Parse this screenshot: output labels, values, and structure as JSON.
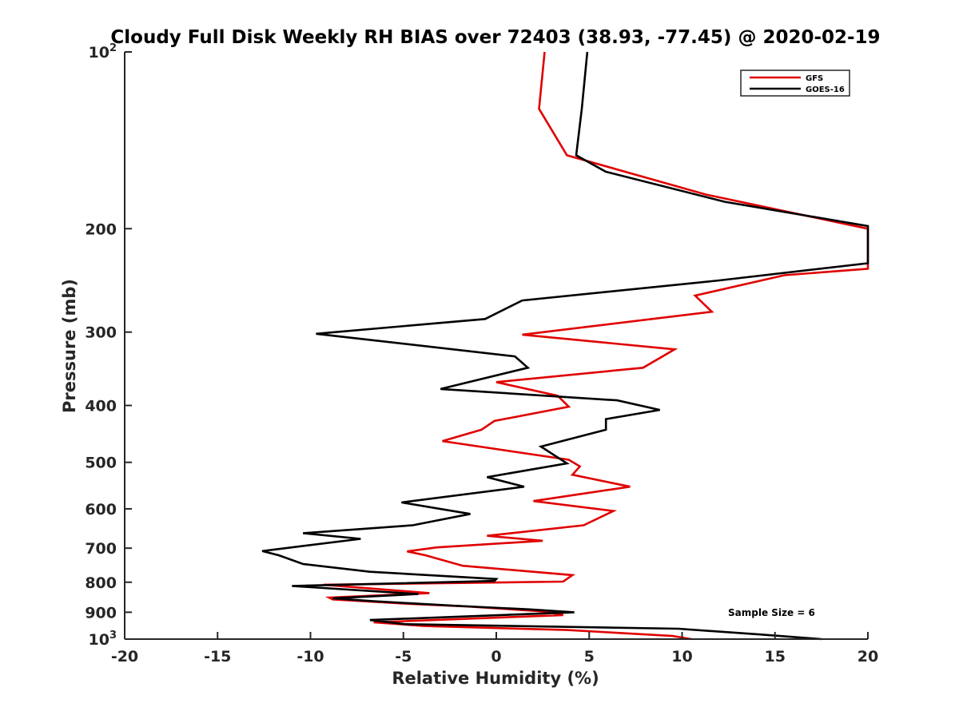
{
  "chart_data": {
    "type": "line",
    "title": "Cloudy Full Disk Weekly RH BIAS over 72403 (38.93, -77.45) @ 2020-02-19",
    "xlabel": "Relative Humidity (%)",
    "ylabel": "Pressure (mb)",
    "xlim": [
      -20,
      20
    ],
    "ylim": [
      100,
      1000
    ],
    "y_scale": "log",
    "y_reversed": true,
    "grid": false,
    "legend_position": "top-right",
    "x_ticks": [
      "-20",
      "-15",
      "-10",
      "-5",
      "0",
      "5",
      "10",
      "15",
      "20"
    ],
    "y_ticks": [
      {
        "base": "10",
        "exp": "2"
      },
      {
        "base": "200",
        "exp": ""
      },
      {
        "base": "300",
        "exp": ""
      },
      {
        "base": "400",
        "exp": ""
      },
      {
        "base": "500",
        "exp": ""
      },
      {
        "base": "600",
        "exp": ""
      },
      {
        "base": "700",
        "exp": ""
      },
      {
        "base": "800",
        "exp": ""
      },
      {
        "base": "900",
        "exp": ""
      },
      {
        "base": "10",
        "exp": "3"
      }
    ],
    "annotation": "Sample Size = 6",
    "series": [
      {
        "name": "GFS",
        "color": "#e00000",
        "points": [
          [
            2.6,
            100
          ],
          [
            2.3,
            125
          ],
          [
            3.8,
            150
          ],
          [
            11.3,
            175
          ],
          [
            20,
            200
          ],
          [
            20,
            234
          ],
          [
            15.5,
            240
          ],
          [
            10.7,
            260
          ],
          [
            11.6,
            277
          ],
          [
            1.4,
            303
          ],
          [
            9.6,
            321
          ],
          [
            7.9,
            345
          ],
          [
            0,
            365
          ],
          [
            3.3,
            385
          ],
          [
            3.9,
            402
          ],
          [
            -0.1,
            425
          ],
          [
            -0.8,
            440
          ],
          [
            -2.9,
            460
          ],
          [
            3.9,
            495
          ],
          [
            4.5,
            508
          ],
          [
            4.1,
            525
          ],
          [
            7.2,
            550
          ],
          [
            2,
            582
          ],
          [
            6.3,
            605
          ],
          [
            4.7,
            640
          ],
          [
            -0.5,
            667
          ],
          [
            2.5,
            680
          ],
          [
            -3.2,
            698
          ],
          [
            -4.8,
            709
          ],
          [
            -3.8,
            720
          ],
          [
            -1.8,
            750
          ],
          [
            4.1,
            778
          ],
          [
            3.6,
            798
          ],
          [
            -9.3,
            808
          ],
          [
            -3.6,
            835
          ],
          [
            -9,
            850
          ],
          [
            -8.8,
            856
          ],
          [
            -5,
            870
          ],
          [
            -1.5,
            880
          ],
          [
            2.5,
            897
          ],
          [
            3.6,
            910
          ],
          [
            -4.9,
            932
          ],
          [
            -6.6,
            936
          ],
          [
            -3.9,
            950
          ],
          [
            3.8,
            965
          ],
          [
            9.5,
            988
          ],
          [
            10.5,
            1000
          ]
        ]
      },
      {
        "name": "GOES-16",
        "color": "#000000",
        "points": [
          [
            4.9,
            100
          ],
          [
            4.6,
            125
          ],
          [
            4.3,
            150
          ],
          [
            5.9,
            160
          ],
          [
            12.3,
            180
          ],
          [
            20,
            198
          ],
          [
            20,
            229
          ],
          [
            12,
            245
          ],
          [
            1.4,
            265
          ],
          [
            -0.6,
            285
          ],
          [
            -9.7,
            302
          ],
          [
            1,
            330
          ],
          [
            1.7,
            345
          ],
          [
            -3.0,
            375
          ],
          [
            6.5,
            392
          ],
          [
            8.8,
            407
          ],
          [
            5.9,
            422
          ],
          [
            5.9,
            440
          ],
          [
            2.4,
            470
          ],
          [
            3.8,
            502
          ],
          [
            -0.5,
            530
          ],
          [
            1.5,
            550
          ],
          [
            -5.1,
            585
          ],
          [
            -1.4,
            612
          ],
          [
            -4.5,
            640
          ],
          [
            -10.4,
            660
          ],
          [
            -7.3,
            675
          ],
          [
            -12.6,
            708
          ],
          [
            -11.7,
            720
          ],
          [
            -10.4,
            745
          ],
          [
            -6.8,
            768
          ],
          [
            0,
            790
          ],
          [
            -0.1,
            796
          ],
          [
            -11,
            812
          ],
          [
            -4.2,
            838
          ],
          [
            -8.8,
            852
          ],
          [
            -6.6,
            862
          ],
          [
            -2,
            878
          ],
          [
            1.8,
            890
          ],
          [
            4.2,
            900
          ],
          [
            -6.8,
            928
          ],
          [
            -4.9,
            943
          ],
          [
            9.8,
            960
          ],
          [
            14.2,
            982
          ],
          [
            17.5,
            1000
          ]
        ]
      }
    ]
  }
}
